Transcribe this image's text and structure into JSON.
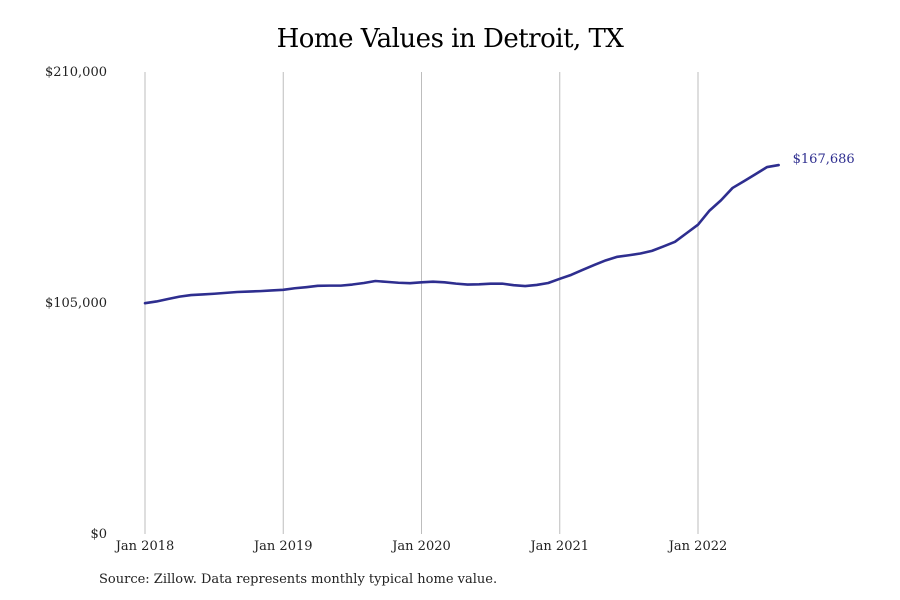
{
  "chart_data": {
    "type": "line",
    "title": "Home Values in Detroit, TX",
    "xlabel": "",
    "ylabel": "",
    "ylim": [
      0,
      210000
    ],
    "y_ticks": [
      {
        "value": 0,
        "label": "$0"
      },
      {
        "value": 105000,
        "label": "$105,000"
      },
      {
        "value": 210000,
        "label": "$210,000"
      }
    ],
    "x_ticks": [
      {
        "value": "2018-01",
        "label": "Jan 2018"
      },
      {
        "value": "2019-01",
        "label": "Jan 2019"
      },
      {
        "value": "2020-01",
        "label": "Jan 2020"
      },
      {
        "value": "2021-01",
        "label": "Jan 2021"
      },
      {
        "value": "2022-01",
        "label": "Jan 2022"
      }
    ],
    "grid": "vertical",
    "line_color": "#2e2e8f",
    "end_label": "$167,686",
    "series": [
      {
        "x": [
          "2018-01",
          "2018-02",
          "2018-03",
          "2018-04",
          "2018-05",
          "2018-06",
          "2018-07",
          "2018-08",
          "2018-09",
          "2018-10",
          "2018-11",
          "2018-12",
          "2019-01",
          "2019-02",
          "2019-03",
          "2019-04",
          "2019-05",
          "2019-06",
          "2019-07",
          "2019-08",
          "2019-09",
          "2019-10",
          "2019-11",
          "2019-12",
          "2020-01",
          "2020-02",
          "2020-03",
          "2020-04",
          "2020-05",
          "2020-06",
          "2020-07",
          "2020-08",
          "2020-09",
          "2020-10",
          "2020-11",
          "2020-12",
          "2021-01",
          "2021-02",
          "2021-03",
          "2021-04",
          "2021-05",
          "2021-06",
          "2021-07",
          "2021-08",
          "2021-09",
          "2021-10",
          "2021-11",
          "2021-12",
          "2022-01",
          "2022-02",
          "2022-03",
          "2022-04",
          "2022-05",
          "2022-06",
          "2022-07",
          "2022-08"
        ],
        "values": [
          104900,
          105700,
          106800,
          107900,
          108600,
          108900,
          109200,
          109600,
          110000,
          110200,
          110400,
          110700,
          111000,
          111700,
          112200,
          112800,
          112900,
          112900,
          113400,
          114100,
          115000,
          114600,
          114200,
          114000,
          114400,
          114700,
          114400,
          113800,
          113400,
          113500,
          113800,
          113800,
          113100,
          112700,
          113200,
          114100,
          116000,
          117800,
          120100,
          122300,
          124400,
          126000,
          126700,
          127500,
          128700,
          130700,
          132800,
          136700,
          140600,
          147000,
          151700,
          157300,
          160400,
          163600,
          166800,
          167686
        ]
      }
    ]
  },
  "source_note": "Source: Zillow. Data represents monthly typical home value."
}
